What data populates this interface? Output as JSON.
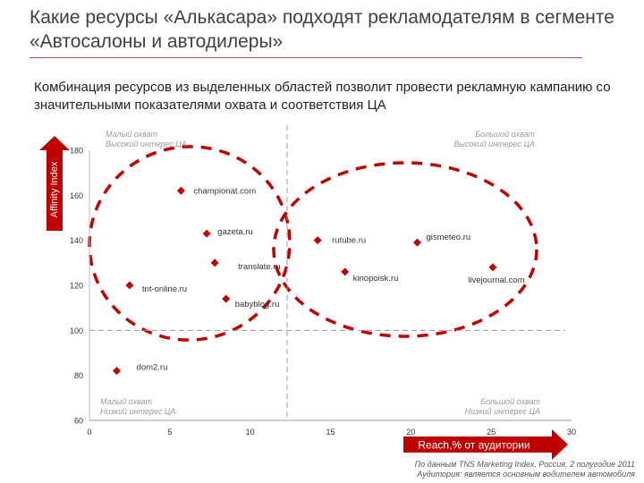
{
  "title": "Какие ресурсы «Алькасара» подходят рекламодателям в сегменте «Автосалоны и автодилеры»",
  "subtitle": "Комбинация ресурсов из выделенных областей позволит провести рекламную кампанию со значительными показателями охвата и соответствия ЦА",
  "source_note": [
    "По данным TNS Marketing Index, Россия, 2 полугодие 2011",
    "Аудитория: является основным водителем автомобиля"
  ],
  "colors": {
    "accent": "#c00000",
    "marker": "#c00000",
    "divider": "#9a9a9a"
  },
  "chart_data": {
    "type": "scatter",
    "xlabel": "Reach,% от аудитории",
    "ylabel": "Affinity Index",
    "xlim": [
      0,
      30
    ],
    "ylim": [
      60,
      180
    ],
    "xticks": [
      0,
      5,
      10,
      15,
      20,
      25,
      30
    ],
    "yticks": [
      60,
      80,
      100,
      120,
      140,
      160,
      180
    ],
    "points": [
      {
        "label": "championat.com",
        "x": 5.7,
        "y": 162
      },
      {
        "label": "gazeta.ru",
        "x": 7.3,
        "y": 143
      },
      {
        "label": "rutube.ru",
        "x": 14.2,
        "y": 140
      },
      {
        "label": "gismeteo.ru",
        "x": 20.4,
        "y": 139
      },
      {
        "label": "translate.ru",
        "x": 7.8,
        "y": 130
      },
      {
        "label": "kinopoisk.ru",
        "x": 15.9,
        "y": 126
      },
      {
        "label": "livejournal.com",
        "x": 25.1,
        "y": 128
      },
      {
        "label": "tnt-online.ru",
        "x": 2.5,
        "y": 120
      },
      {
        "label": "babyblog.ru",
        "x": 8.5,
        "y": 114
      },
      {
        "label": "dom2.ru",
        "x": 1.7,
        "y": 82
      }
    ],
    "reference_lines": {
      "x": 12.3,
      "y": 100
    },
    "quadrants": {
      "top_left": [
        "Малый охват",
        "Высокий интерес ЦА"
      ],
      "top_right": [
        "Большой охват",
        "Высокий интерес ЦА"
      ],
      "bottom_left": [
        "Малый охват",
        "Низкий интерес ЦА"
      ],
      "bottom_right": [
        "Большой охват",
        "Низкий интерес ЦА"
      ]
    },
    "highlight_ellipses": 2
  }
}
